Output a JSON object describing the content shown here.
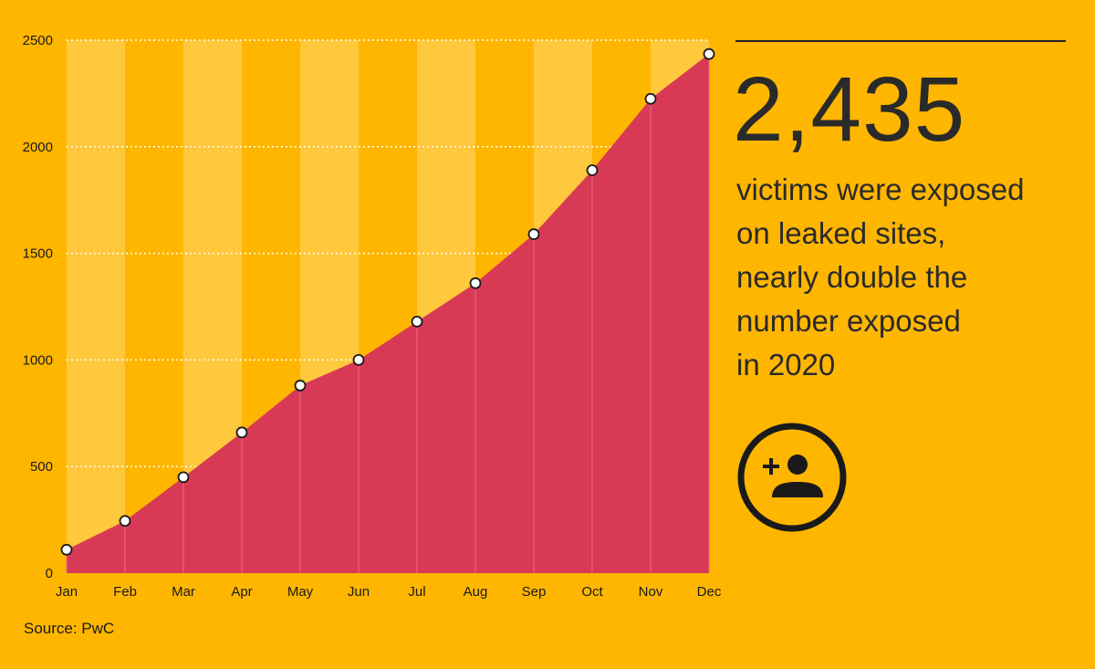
{
  "chart_data": {
    "type": "area",
    "categories": [
      "Jan",
      "Feb",
      "Mar",
      "Apr",
      "May",
      "Jun",
      "Jul",
      "Aug",
      "Sep",
      "Oct",
      "Nov",
      "Dec"
    ],
    "values": [
      110,
      245,
      450,
      660,
      880,
      1000,
      1180,
      1360,
      1590,
      1890,
      2225,
      2435
    ],
    "ylim": [
      0,
      2500
    ],
    "yticks": [
      0,
      500,
      1000,
      1500,
      2000,
      2500
    ],
    "grid": true,
    "fill_color": "#D83A56",
    "background_color": "#FFB600",
    "band_color": "#FFC83D",
    "marker_color": "#FFFFFF"
  },
  "headline": {
    "number": "2,435",
    "caption_lines": [
      "victims were exposed",
      "on leaked sites,",
      "nearly double the",
      "number exposed",
      "in 2020"
    ]
  },
  "icon": "add-user-icon",
  "source": "Source: PwC"
}
